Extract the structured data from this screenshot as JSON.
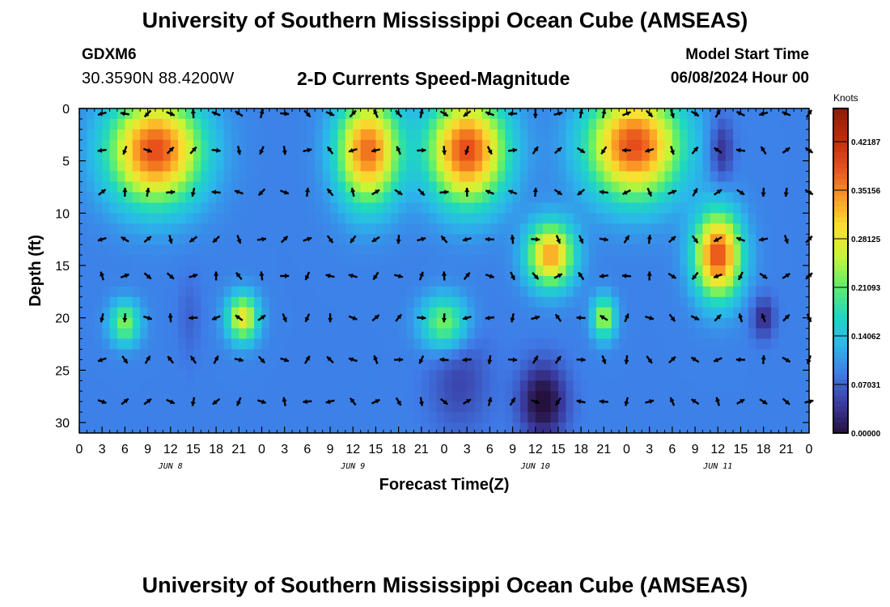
{
  "header": {
    "title": "University of Southern Mississippi Ocean Cube (AMSEAS)",
    "station": "GDXM6",
    "coords": "30.3590N  88.4200W",
    "subtitle": "2-D Currents Speed-Magnitude",
    "start_label": "Model Start Time",
    "start_value": "06/08/2024 Hour 00"
  },
  "footer": {
    "title": "University of Southern Mississippi Ocean Cube (AMSEAS)"
  },
  "colors": {
    "ramp": [
      "#26103e",
      "#3a3aa0",
      "#3f7be8",
      "#2ab8ea",
      "#1fd8c0",
      "#5fef6a",
      "#c8f535",
      "#f9e030",
      "#fb9a24",
      "#e8501c",
      "#c22a0c",
      "#8e1b08"
    ],
    "arrow": "#000000"
  },
  "chart_data": {
    "type": "heatmap",
    "title": "2-D Currents Speed-Magnitude",
    "xlabel": "Forecast Time(Z)",
    "ylabel": "Depth (ft)",
    "x_range": [
      0,
      96
    ],
    "y_range": [
      0,
      31
    ],
    "x_tick_labels": [
      "0",
      "3",
      "6",
      "9",
      "12",
      "15",
      "18",
      "21",
      "0",
      "3",
      "6",
      "9",
      "12",
      "15",
      "18",
      "21",
      "0",
      "3",
      "6",
      "9",
      "12",
      "15",
      "18",
      "21",
      "0",
      "3",
      "6",
      "9",
      "12",
      "15",
      "18",
      "21",
      "0"
    ],
    "y_ticks": [
      0,
      5,
      10,
      15,
      20,
      25,
      30
    ],
    "day_labels": [
      {
        "label": "JUN 8",
        "hour": 12
      },
      {
        "label": "JUN 9",
        "hour": 36
      },
      {
        "label": "JUN 10",
        "hour": 60
      },
      {
        "label": "JUN 11",
        "hour": 84
      }
    ],
    "colorbar": {
      "label": "Knots",
      "ticks": [
        "0.42187",
        "0.35156",
        "0.28125",
        "0.21093",
        "0.14062",
        "0.07031",
        "0.00000"
      ],
      "tick_values": [
        0.42187,
        0.35156,
        0.28125,
        0.21093,
        0.14062,
        0.07031,
        0.0
      ],
      "range": [
        0,
        0.47
      ]
    },
    "arrow_depths_ft": [
      0.5,
      4,
      8,
      12.5,
      16,
      20,
      24,
      28
    ],
    "arrow_times_h": [
      3,
      6,
      9,
      12,
      15,
      18,
      21,
      24,
      27,
      30,
      33,
      36,
      39,
      42,
      45,
      48,
      51,
      54,
      57,
      60,
      63,
      66,
      69,
      72,
      75,
      78,
      81,
      84,
      87,
      90,
      93,
      96
    ],
    "speed_features": [
      {
        "hour": 10,
        "depth": 4,
        "sx": 6,
        "sy": 5,
        "speed": 0.3
      },
      {
        "hour": 38,
        "depth": 4,
        "sx": 4,
        "sy": 5,
        "speed": 0.28
      },
      {
        "hour": 51,
        "depth": 4,
        "sx": 5,
        "sy": 5,
        "speed": 0.3
      },
      {
        "hour": 73,
        "depth": 3.5,
        "sx": 6,
        "sy": 5,
        "speed": 0.3
      },
      {
        "hour": 84,
        "depth": 14,
        "sx": 3,
        "sy": 4,
        "speed": 0.3
      },
      {
        "hour": 62,
        "depth": 14,
        "sx": 3,
        "sy": 3,
        "speed": 0.25
      },
      {
        "hour": 21.5,
        "depth": 20,
        "sx": 2,
        "sy": 2.2,
        "speed": 0.2
      },
      {
        "hour": 6,
        "depth": 20.5,
        "sx": 2,
        "sy": 2,
        "speed": 0.14
      },
      {
        "hour": 48,
        "depth": 20.5,
        "sx": 3,
        "sy": 2.5,
        "speed": 0.14
      },
      {
        "hour": 69,
        "depth": 20,
        "sx": 1.5,
        "sy": 2,
        "speed": 0.16
      },
      {
        "hour": 61,
        "depth": 28,
        "sx": 3,
        "sy": 3.5,
        "speed": -0.1
      },
      {
        "hour": 84.5,
        "depth": 4,
        "sx": 1.5,
        "sy": 3,
        "speed": -0.06
      },
      {
        "hour": 90,
        "depth": 20,
        "sx": 1.5,
        "sy": 2,
        "speed": -0.06
      },
      {
        "hour": 50,
        "depth": 26,
        "sx": 4,
        "sy": 5,
        "speed": -0.04
      },
      {
        "hour": 14.5,
        "depth": 20,
        "sx": 1.5,
        "sy": 4,
        "speed": -0.02
      }
    ],
    "background_speed": 0.09
  }
}
